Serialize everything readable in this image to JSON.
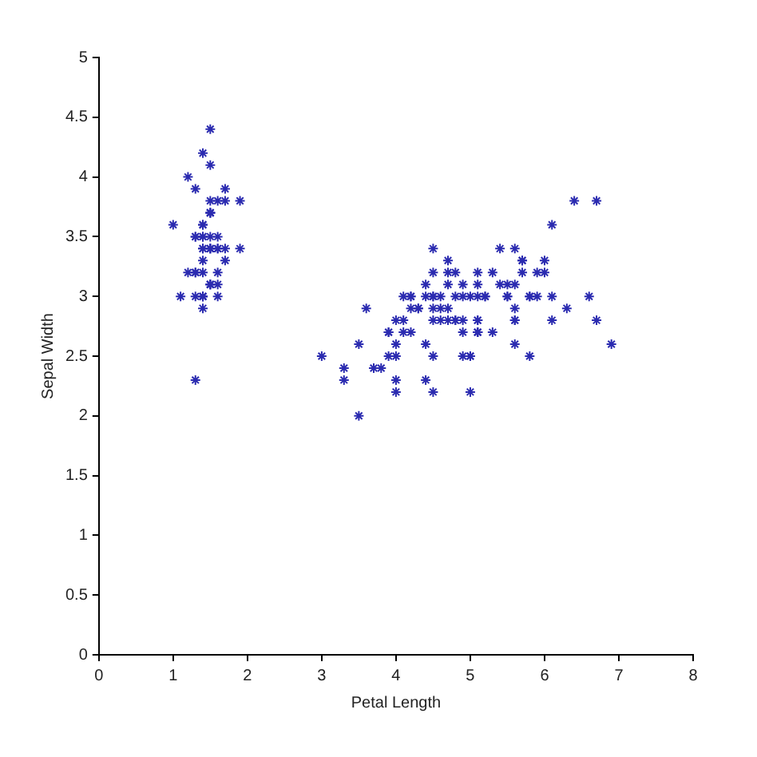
{
  "chart_data": {
    "type": "scatter",
    "xlabel": "Petal Length",
    "ylabel": "Sepal Width",
    "xlim": [
      0,
      8
    ],
    "xticks": [
      0,
      1,
      2,
      3,
      4,
      5,
      6,
      7,
      8
    ],
    "ylim": [
      0,
      5
    ],
    "yticks": [
      0,
      0.5,
      1,
      1.5,
      2,
      2.5,
      3,
      3.5,
      4,
      4.5,
      5
    ],
    "grid": false,
    "legend": false,
    "marker": "cross",
    "series": [
      {
        "color": "#2b2bb0",
        "x": [
          1.4,
          1.4,
          1.3,
          1.5,
          1.4,
          1.7,
          1.4,
          1.5,
          1.4,
          1.5,
          1.5,
          1.6,
          1.4,
          1.1,
          1.2,
          1.5,
          1.3,
          1.4,
          1.7,
          1.5,
          1.7,
          1.5,
          1.0,
          1.7,
          1.9,
          1.6,
          1.6,
          1.5,
          1.4,
          1.6,
          1.6,
          1.5,
          1.5,
          1.4,
          1.5,
          1.2,
          1.3,
          1.4,
          1.3,
          1.5,
          1.3,
          1.3,
          1.3,
          1.6,
          1.9,
          1.4,
          1.6,
          1.4,
          1.5,
          1.4,
          4.7,
          4.5,
          4.9,
          4.0,
          4.6,
          4.5,
          4.7,
          3.3,
          4.6,
          3.9,
          3.5,
          4.2,
          4.0,
          4.7,
          3.6,
          4.4,
          4.5,
          4.1,
          4.5,
          3.9,
          4.8,
          4.0,
          4.9,
          4.7,
          4.3,
          4.4,
          4.8,
          5.0,
          4.5,
          3.5,
          3.8,
          3.7,
          3.9,
          5.1,
          4.5,
          4.5,
          4.7,
          4.4,
          4.1,
          4.0,
          4.4,
          4.6,
          4.0,
          3.3,
          4.2,
          4.2,
          4.2,
          4.3,
          3.0,
          4.1,
          6.0,
          5.1,
          5.9,
          5.6,
          5.8,
          6.6,
          4.5,
          6.3,
          5.8,
          6.1,
          5.1,
          5.3,
          5.5,
          5.0,
          5.1,
          5.3,
          5.5,
          6.7,
          6.9,
          5.0,
          5.7,
          4.9,
          6.7,
          4.9,
          5.7,
          6.0,
          4.8,
          4.9,
          5.6,
          5.8,
          6.1,
          6.4,
          5.6,
          5.1,
          5.6,
          6.1,
          5.6,
          5.5,
          4.8,
          5.4,
          5.6,
          5.1,
          5.1,
          5.9,
          5.7,
          5.2,
          5.0,
          5.2,
          5.4,
          5.1
        ],
        "values": [
          3.5,
          3.0,
          3.2,
          3.1,
          3.6,
          3.9,
          3.4,
          3.4,
          2.9,
          3.1,
          3.7,
          3.4,
          3.0,
          3.0,
          4.0,
          4.4,
          3.9,
          3.5,
          3.8,
          3.8,
          3.4,
          3.7,
          3.6,
          3.3,
          3.4,
          3.0,
          3.4,
          3.5,
          3.4,
          3.2,
          3.1,
          3.4,
          4.1,
          4.2,
          3.1,
          3.2,
          3.5,
          3.6,
          3.0,
          3.4,
          3.5,
          2.3,
          3.2,
          3.5,
          3.8,
          3.0,
          3.8,
          3.2,
          3.7,
          3.3,
          3.2,
          3.2,
          3.1,
          2.3,
          2.8,
          2.8,
          3.3,
          2.4,
          2.9,
          2.7,
          2.0,
          3.0,
          2.2,
          2.9,
          2.9,
          3.1,
          3.0,
          2.7,
          2.2,
          2.5,
          3.2,
          2.8,
          2.5,
          2.8,
          2.9,
          3.0,
          2.8,
          3.0,
          2.9,
          2.6,
          2.4,
          2.4,
          2.7,
          2.7,
          3.0,
          3.4,
          3.1,
          2.3,
          3.0,
          2.5,
          2.6,
          3.0,
          2.6,
          2.3,
          2.7,
          3.0,
          2.9,
          2.9,
          2.5,
          2.8,
          3.3,
          2.7,
          3.0,
          2.9,
          3.0,
          3.0,
          2.5,
          2.9,
          2.5,
          3.6,
          3.2,
          2.7,
          3.0,
          2.5,
          2.8,
          3.2,
          3.0,
          3.8,
          2.6,
          2.2,
          3.2,
          2.8,
          2.8,
          2.7,
          3.3,
          3.2,
          2.8,
          3.0,
          2.8,
          3.0,
          2.8,
          3.8,
          2.8,
          2.8,
          2.6,
          3.0,
          3.4,
          3.1,
          3.0,
          3.1,
          3.1,
          3.1,
          2.7,
          3.2,
          3.3,
          3.0,
          2.5,
          3.0,
          3.4,
          3.0
        ]
      }
    ]
  }
}
